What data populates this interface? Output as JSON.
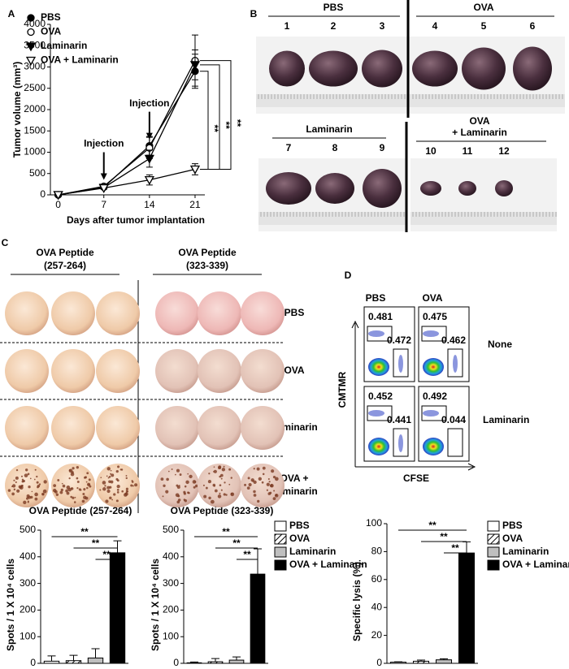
{
  "panel_labels": [
    "A",
    "B",
    "C",
    "D"
  ],
  "chart_data": [
    {
      "type": "line",
      "y_label": "Tumor volume (mm³)",
      "x_label": "Days after tumor implantation",
      "x": [
        0,
        7,
        14,
        21
      ],
      "xlim": [
        -1.2,
        22.5
      ],
      "xticks": [
        0,
        7,
        14,
        21
      ],
      "ylim": [
        0,
        4000
      ],
      "yticks": [
        0,
        500,
        1000,
        1500,
        2000,
        2500,
        3000,
        3500,
        4000
      ],
      "series": [
        {
          "name": "PBS",
          "color": "#000000",
          "marker": "circle",
          "values": [
            0,
            180,
            1150,
            2900
          ],
          "errors": [
            20,
            30,
            220,
            400
          ]
        },
        {
          "name": "OVA",
          "color": "#000000",
          "marker": "circle-open",
          "values": [
            0,
            200,
            1100,
            3150
          ],
          "errors": [
            20,
            30,
            250,
            600
          ]
        },
        {
          "name": "Laminarin",
          "color": "#000000",
          "marker": "triangle-down",
          "values": [
            0,
            170,
            850,
            3050
          ],
          "errors": [
            20,
            30,
            200,
            350
          ]
        },
        {
          "name": "OVA + Laminarin",
          "color": "#000000",
          "marker": "triangle-down-open",
          "values": [
            0,
            160,
            350,
            600
          ],
          "errors": [
            20,
            30,
            120,
            130
          ]
        }
      ],
      "annotations": [
        {
          "text": "Injection",
          "x": 7
        },
        {
          "text": "Injection",
          "x": 14
        }
      ],
      "significance": [
        "**",
        "**",
        "**"
      ]
    },
    {
      "type": "bar",
      "title": "OVA Peptide (257-264)",
      "y_label": "Spots / 1 X 10⁴ cells",
      "categories": [
        "PBS",
        "OVA",
        "Laminarin",
        "OVA + Laminarin"
      ],
      "colors": [
        "#ffffff",
        "#ffffff",
        "#bfbfbf",
        "#000000"
      ],
      "hatch": [
        false,
        true,
        false,
        false
      ],
      "values": [
        8,
        10,
        20,
        415
      ],
      "errors": [
        20,
        20,
        35,
        45
      ],
      "ylim": [
        0,
        500
      ],
      "yticks": [
        0,
        100,
        200,
        300,
        400,
        500
      ],
      "legend": false,
      "significance": [
        "**",
        "**",
        "**"
      ]
    },
    {
      "type": "bar",
      "title": "OVA Peptide (323-339)",
      "y_label": "Spots / 1 X 10⁴ cells",
      "categories": [
        "PBS",
        "OVA",
        "Laminarin",
        "OVA + Laminarin"
      ],
      "colors": [
        "#ffffff",
        "#ffffff",
        "#bfbfbf",
        "#000000"
      ],
      "hatch": [
        false,
        true,
        false,
        false
      ],
      "values": [
        2,
        6,
        12,
        335
      ],
      "errors": [
        3,
        12,
        12,
        95
      ],
      "ylim": [
        0,
        500
      ],
      "yticks": [
        0,
        100,
        200,
        300,
        400,
        500
      ],
      "legend": true,
      "significance": [
        "**",
        "**",
        "**"
      ]
    },
    {
      "type": "bar",
      "y_label": "Specific lysis (%)",
      "categories": [
        "PBS",
        "OVA",
        "Laminarin",
        "OVA + Laminarin"
      ],
      "colors": [
        "#ffffff",
        "#ffffff",
        "#bfbfbf",
        "#000000"
      ],
      "hatch": [
        false,
        true,
        false,
        false
      ],
      "values": [
        0.8,
        1.5,
        2.5,
        79
      ],
      "errors": [
        0.3,
        0.8,
        0.8,
        8
      ],
      "ylim": [
        0,
        100
      ],
      "yticks": [
        0,
        20,
        40,
        60,
        80,
        100
      ],
      "legend": true,
      "significance": [
        "**",
        "**",
        "**"
      ]
    }
  ],
  "tumor_photos": {
    "groups": [
      {
        "label": [
          "PBS"
        ],
        "numbers": [
          "1",
          "2",
          "3"
        ]
      },
      {
        "label": [
          "OVA"
        ],
        "numbers": [
          "4",
          "5",
          "6"
        ]
      },
      {
        "label": [
          "Laminarin"
        ],
        "numbers": [
          "7",
          "8",
          "9"
        ]
      },
      {
        "label": [
          "OVA",
          "+ Laminarin"
        ],
        "numbers": [
          "10",
          "11",
          "12"
        ]
      }
    ]
  },
  "elispot": {
    "columns": [
      [
        "OVA Peptide",
        "(257-264)"
      ],
      [
        "OVA Peptide",
        "(323-339)"
      ]
    ],
    "rows": [
      [
        "PBS"
      ],
      [
        "OVA"
      ],
      [
        "Laminarin"
      ],
      [
        "OVA +",
        "Laminarin"
      ]
    ]
  },
  "flow": {
    "columns": [
      "PBS",
      "OVA"
    ],
    "rows": [
      "None",
      "Laminarin"
    ],
    "y_label": "CMTMR",
    "x_label": "CFSE",
    "gates": [
      [
        "0.481",
        "0.472"
      ],
      [
        "0.475",
        "0.462"
      ],
      [
        "0.452",
        "0.441"
      ],
      [
        "0.492",
        "0.044"
      ]
    ]
  }
}
